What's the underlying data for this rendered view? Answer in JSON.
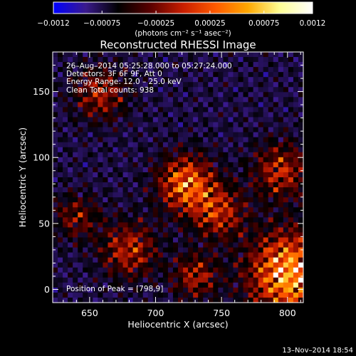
{
  "chart_data": {
    "type": "heatmap",
    "title": "Reconstructed RHESSI Image",
    "xlabel": "Heliocentric X (arcsec)",
    "ylabel": "Heliocentric Y (arcsec)",
    "xlim": [
      622,
      812
    ],
    "ylim": [
      -10,
      180
    ],
    "x_ticks": [
      650,
      700,
      750,
      800
    ],
    "y_ticks": [
      0,
      50,
      100,
      150
    ],
    "colorbar": {
      "ticks": [
        -0.0012,
        -0.00075,
        -0.00025,
        0.00025,
        0.00075,
        0.0012
      ],
      "tick_labels": [
        "−0.0012",
        "−0.00075",
        "−0.00025",
        "0.00025",
        "0.00075",
        "0.0012"
      ],
      "range": [
        -0.0012,
        0.0012
      ],
      "unit_label": "(photons cm⁻² s⁻¹ asec⁻²)",
      "colors": [
        "#0000ff",
        "#3a1a8c",
        "#000000",
        "#5a0000",
        "#c81e00",
        "#ff5a00",
        "#ffa800",
        "#ffff96",
        "#ffffff"
      ]
    },
    "annotations": [
      "26–Aug–2014 05:25:28.000 to 05:27:24.000",
      "Detectors: 3F 6F 9F, Att 0",
      "Energy Range: 12.0 – 25.0 keV",
      "Clean     Total counts: 938"
    ],
    "peak_label": "Position of Peak = [798,9]",
    "peak_position": [
      798,
      9
    ],
    "emission_regions": [
      {
        "x": 802,
        "y": 12,
        "strength": 1.0,
        "radius": 22
      },
      {
        "x": 723,
        "y": 80,
        "strength": 0.8,
        "radius": 15
      },
      {
        "x": 748,
        "y": 58,
        "strength": 0.55,
        "radius": 14
      },
      {
        "x": 680,
        "y": 30,
        "strength": 0.55,
        "radius": 15
      },
      {
        "x": 658,
        "y": 148,
        "strength": 0.5,
        "radius": 14
      },
      {
        "x": 795,
        "y": 90,
        "strength": 0.55,
        "radius": 15
      },
      {
        "x": 640,
        "y": 55,
        "strength": 0.4,
        "radius": 12
      },
      {
        "x": 730,
        "y": 10,
        "strength": 0.5,
        "radius": 12
      }
    ]
  },
  "footer": {
    "date": "13–Nov–2014 18:54"
  }
}
